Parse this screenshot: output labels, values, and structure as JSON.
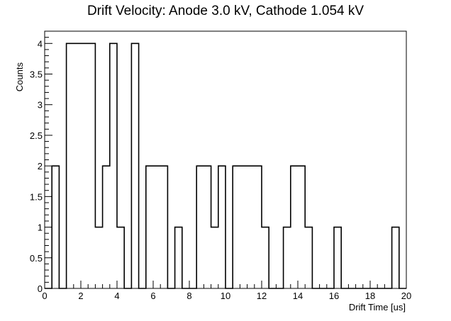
{
  "chart_data": {
    "type": "bar",
    "title": "Drift Velocity: Anode 3.0 kV, Cathode 1.054 kV",
    "xlabel": "Drift Time [us]",
    "ylabel": "Counts",
    "xlim": [
      0,
      20
    ],
    "ylim": [
      0,
      4.2
    ],
    "grid": false,
    "legend": "none",
    "x_ticks": [
      0,
      2,
      4,
      6,
      8,
      10,
      12,
      14,
      16,
      18,
      20
    ],
    "x_tick_labels": [
      "0",
      "2",
      "4",
      "6",
      "8",
      "10",
      "12",
      "14",
      "16",
      "18",
      "20"
    ],
    "y_ticks": [
      0,
      0.5,
      1,
      1.5,
      2,
      2.5,
      3,
      3.5,
      4
    ],
    "y_tick_labels": [
      "0",
      "0.5",
      "1",
      "1.5",
      "2",
      "2.5",
      "3",
      "3.5",
      "4"
    ],
    "bin_width": 0.4,
    "bin_edges_start": 0,
    "counts": [
      0,
      2,
      0,
      4,
      4,
      4,
      4,
      1,
      2,
      4,
      1,
      0,
      4,
      0,
      2,
      2,
      2,
      0,
      1,
      0,
      0,
      2,
      2,
      1,
      2,
      0,
      2,
      2,
      2,
      2,
      1,
      0,
      0,
      1,
      2,
      2,
      1,
      0,
      0,
      0,
      1,
      0,
      0,
      0,
      0,
      0,
      0,
      0,
      1,
      0
    ],
    "color": "#000000"
  }
}
